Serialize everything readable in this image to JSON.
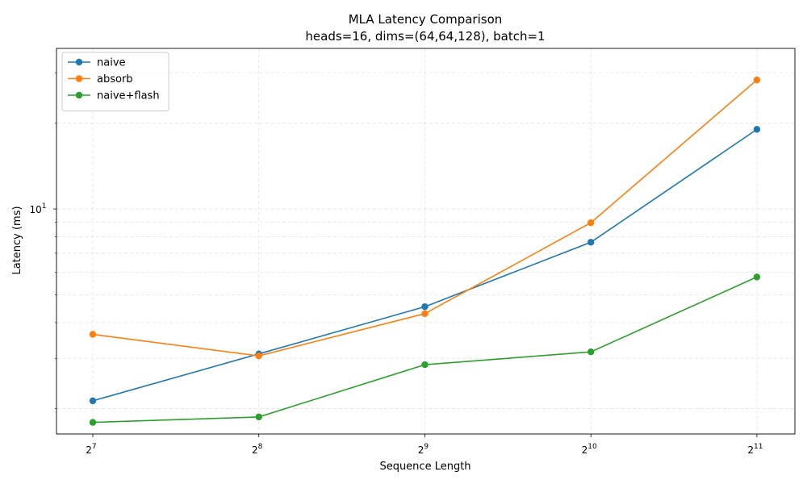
{
  "chart_data": {
    "type": "line",
    "title": "MLA Latency Comparison",
    "subtitle": "heads=16, dims=(64,64,128), batch=1",
    "xlabel": "Sequence Length",
    "ylabel": "Latency (ms)",
    "x_scale": "log2",
    "y_scale": "log10",
    "x": [
      128,
      256,
      512,
      1024,
      2048
    ],
    "x_tick_labels": [
      {
        "base": "2",
        "exp": "7"
      },
      {
        "base": "2",
        "exp": "8"
      },
      {
        "base": "2",
        "exp": "9"
      },
      {
        "base": "2",
        "exp": "10"
      },
      {
        "base": "2",
        "exp": "11"
      }
    ],
    "y_tick_labels": [
      {
        "base": "10",
        "exp": "1",
        "value": 10
      }
    ],
    "y_minor_ticks": [
      2,
      3,
      4,
      5,
      6,
      7,
      8,
      9,
      20,
      30
    ],
    "xlim": [
      110,
      2400
    ],
    "ylim": [
      1.63,
      36.5
    ],
    "grid": true,
    "legend_position": "upper-left",
    "series": [
      {
        "name": "naive",
        "color": "#1f77b4",
        "values": [
          2.13,
          3.11,
          4.55,
          7.65,
          19.0
        ]
      },
      {
        "name": "absorb",
        "color": "#ff7f0e",
        "values": [
          3.64,
          3.06,
          4.3,
          8.95,
          28.3
        ]
      },
      {
        "name": "naive+flash",
        "color": "#2ca02c",
        "values": [
          1.79,
          1.87,
          2.85,
          3.16,
          5.78
        ]
      }
    ]
  }
}
